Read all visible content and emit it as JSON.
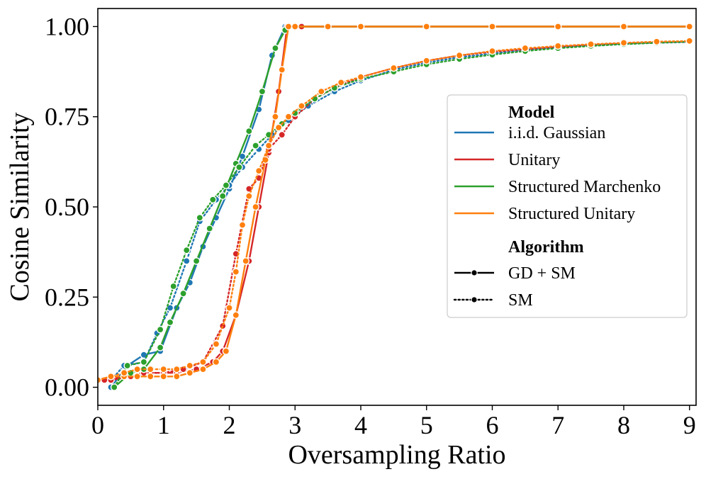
{
  "chart_data": {
    "type": "line",
    "title": "",
    "xlabel": "Oversampling Ratio",
    "ylabel": "Cosine Similarity",
    "xlim": [
      0,
      9.1
    ],
    "ylim": [
      -0.05,
      1.05
    ],
    "xticks": [
      0,
      1,
      2,
      3,
      4,
      5,
      6,
      7,
      8,
      9
    ],
    "xtick_labels": [
      "0",
      "1",
      "2",
      "3",
      "4",
      "5",
      "6",
      "7",
      "8",
      "9"
    ],
    "yticks": [
      0.0,
      0.25,
      0.5,
      0.75,
      1.0
    ],
    "ytick_labels": [
      "0.00",
      "0.25",
      "0.50",
      "0.75",
      "1.00"
    ],
    "grid": false,
    "legend": {
      "placement": "center-right",
      "model_title": "Model",
      "algorithm_title": "Algorithm",
      "models": [
        {
          "name": "i.i.d. Gaussian",
          "color": "#1f77b4"
        },
        {
          "name": "Unitary",
          "color": "#d62728"
        },
        {
          "name": "Structured Marchenko",
          "color": "#2ca02c"
        },
        {
          "name": "Structured Unitary",
          "color": "#ff7f0e"
        }
      ],
      "algorithms": [
        {
          "name": "GD + SM",
          "style": "solid"
        },
        {
          "name": "SM",
          "style": "dotted"
        }
      ]
    },
    "series": [
      {
        "model": "i.i.d. Gaussian",
        "algorithm": "GD + SM",
        "color": "#1f77b4",
        "style": "solid",
        "x": [
          0.2,
          0.45,
          0.7,
          0.95,
          1.2,
          1.4,
          1.6,
          1.8,
          2.0,
          2.2,
          2.45,
          2.65,
          2.85,
          3.1,
          4,
          5,
          6,
          7,
          8,
          9
        ],
        "y": [
          0.0,
          0.06,
          0.09,
          0.1,
          0.22,
          0.29,
          0.39,
          0.47,
          0.55,
          0.64,
          0.77,
          0.92,
          1.0,
          1.0,
          1.0,
          1.0,
          1.0,
          1.0,
          1.0,
          1.0
        ]
      },
      {
        "model": "i.i.d. Gaussian",
        "algorithm": "SM",
        "color": "#1f77b4",
        "style": "dotted",
        "x": [
          0.2,
          0.4,
          0.7,
          0.9,
          1.1,
          1.35,
          1.55,
          1.8,
          2.0,
          2.2,
          2.45,
          2.65,
          2.9,
          3.2,
          3.6,
          4.0,
          4.5,
          5.0,
          5.5,
          6.0,
          6.5,
          7.0,
          7.5,
          8.0,
          8.5,
          9.0
        ],
        "y": [
          0.02,
          0.06,
          0.07,
          0.15,
          0.22,
          0.35,
          0.46,
          0.52,
          0.56,
          0.61,
          0.66,
          0.7,
          0.74,
          0.78,
          0.82,
          0.85,
          0.88,
          0.9,
          0.915,
          0.925,
          0.935,
          0.942,
          0.948,
          0.952,
          0.955,
          0.957
        ]
      },
      {
        "model": "Unitary",
        "algorithm": "GD + SM",
        "color": "#d62728",
        "style": "solid",
        "x": [
          0.2,
          0.5,
          0.8,
          1.0,
          1.2,
          1.5,
          1.75,
          1.9,
          2.1,
          2.3,
          2.45,
          2.6,
          2.75,
          2.88,
          3.1,
          4,
          5,
          6,
          7,
          8,
          9
        ],
        "y": [
          0.02,
          0.03,
          0.04,
          0.04,
          0.04,
          0.05,
          0.07,
          0.1,
          0.2,
          0.35,
          0.5,
          0.65,
          0.82,
          1.0,
          1.0,
          1.0,
          1.0,
          1.0,
          1.0,
          1.0,
          1.0
        ]
      },
      {
        "model": "Unitary",
        "algorithm": "SM",
        "color": "#d62728",
        "style": "dotted",
        "x": [
          0.1,
          0.4,
          0.7,
          1.0,
          1.3,
          1.6,
          1.9,
          2.1,
          2.3,
          2.45,
          2.6,
          2.8,
          3.0,
          3.3,
          3.6,
          4.0,
          4.5,
          5.0,
          5.5,
          6.0,
          6.5,
          7.0,
          7.5,
          8.0,
          8.5,
          9.0
        ],
        "y": [
          0.02,
          0.03,
          0.04,
          0.04,
          0.05,
          0.07,
          0.17,
          0.37,
          0.55,
          0.58,
          0.66,
          0.7,
          0.75,
          0.8,
          0.83,
          0.86,
          0.885,
          0.905,
          0.92,
          0.93,
          0.937,
          0.944,
          0.949,
          0.953,
          0.956,
          0.958
        ]
      },
      {
        "model": "Structured Marchenko",
        "algorithm": "GD + SM",
        "color": "#2ca02c",
        "style": "solid",
        "x": [
          0.25,
          0.5,
          0.7,
          0.95,
          1.1,
          1.3,
          1.5,
          1.7,
          1.9,
          2.1,
          2.3,
          2.5,
          2.7,
          2.85,
          3.0,
          3.5,
          4,
          5,
          6,
          7,
          8,
          9
        ],
        "y": [
          0.0,
          0.04,
          0.05,
          0.11,
          0.18,
          0.26,
          0.35,
          0.44,
          0.53,
          0.62,
          0.71,
          0.82,
          0.94,
          0.99,
          1.0,
          1.0,
          1.0,
          1.0,
          1.0,
          1.0,
          1.0,
          1.0
        ]
      },
      {
        "model": "Structured Marchenko",
        "algorithm": "SM",
        "color": "#2ca02c",
        "style": "dotted",
        "x": [
          0.25,
          0.45,
          0.7,
          0.95,
          1.15,
          1.35,
          1.55,
          1.75,
          1.95,
          2.15,
          2.4,
          2.6,
          2.8,
          3.0,
          3.3,
          3.6,
          4.0,
          4.5,
          5.0,
          5.5,
          6.0,
          6.5,
          7.0,
          7.5,
          8.0,
          8.5,
          9.0
        ],
        "y": [
          0.0,
          0.06,
          0.07,
          0.16,
          0.28,
          0.38,
          0.47,
          0.52,
          0.56,
          0.61,
          0.67,
          0.7,
          0.73,
          0.76,
          0.8,
          0.83,
          0.855,
          0.875,
          0.895,
          0.91,
          0.922,
          0.932,
          0.94,
          0.946,
          0.951,
          0.955,
          0.958
        ]
      },
      {
        "model": "Structured Unitary",
        "algorithm": "GD + SM",
        "color": "#ff7f0e",
        "style": "solid",
        "x": [
          0.0,
          0.2,
          0.4,
          0.6,
          0.8,
          1.0,
          1.2,
          1.4,
          1.6,
          1.8,
          1.95,
          2.1,
          2.25,
          2.4,
          2.55,
          2.7,
          2.8,
          2.9,
          3.0,
          3.5,
          4,
          5,
          6,
          7,
          8,
          9
        ],
        "y": [
          0.02,
          0.03,
          0.03,
          0.03,
          0.03,
          0.03,
          0.03,
          0.04,
          0.05,
          0.07,
          0.1,
          0.2,
          0.35,
          0.5,
          0.63,
          0.75,
          0.88,
          1.0,
          1.0,
          1.0,
          1.0,
          1.0,
          1.0,
          1.0,
          1.0,
          1.0
        ]
      },
      {
        "model": "Structured Unitary",
        "algorithm": "SM",
        "color": "#ff7f0e",
        "style": "dotted",
        "x": [
          0.0,
          0.2,
          0.4,
          0.6,
          0.8,
          1.0,
          1.2,
          1.4,
          1.6,
          1.8,
          2.0,
          2.1,
          2.2,
          2.3,
          2.45,
          2.6,
          2.75,
          2.9,
          3.1,
          3.4,
          3.7,
          4.0,
          4.5,
          5.0,
          5.5,
          6.0,
          6.5,
          7.0,
          7.5,
          8.0,
          8.5,
          9.0
        ],
        "y": [
          0.02,
          0.03,
          0.04,
          0.05,
          0.05,
          0.05,
          0.05,
          0.06,
          0.07,
          0.12,
          0.22,
          0.32,
          0.45,
          0.53,
          0.6,
          0.67,
          0.72,
          0.75,
          0.78,
          0.82,
          0.845,
          0.86,
          0.885,
          0.905,
          0.92,
          0.932,
          0.94,
          0.946,
          0.951,
          0.955,
          0.958,
          0.96
        ]
      }
    ]
  }
}
